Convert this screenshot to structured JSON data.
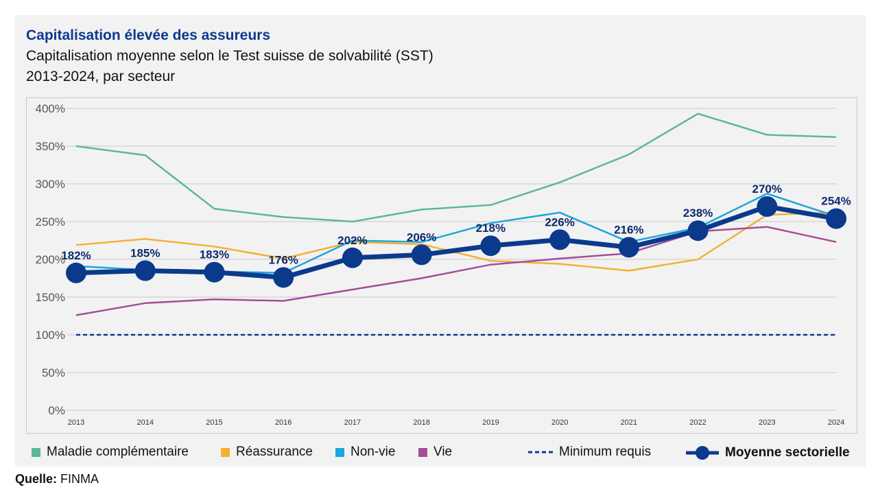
{
  "title": "Capitalisation élevée des assureurs",
  "subtitle": "Capitalisation moyenne selon le Test suisse de solvabilité (SST)",
  "subtitle2": "2013-2024, par secteur",
  "source_label": "Quelle:",
  "source_value": "FINMA",
  "chart_data": {
    "type": "line",
    "x": [
      "2013",
      "2014",
      "2015",
      "2016",
      "2017",
      "2018",
      "2019",
      "2020",
      "2021",
      "2022",
      "2023",
      "2024"
    ],
    "ylim": [
      0,
      400
    ],
    "yticks": [
      "0%",
      "50%",
      "100%",
      "150%",
      "200%",
      "250%",
      "300%",
      "350%",
      "400%"
    ],
    "grid": true,
    "legend_position": "bottom",
    "series": [
      {
        "name": "Maladie complémentaire",
        "color": "#5cb895",
        "values": [
          350,
          338,
          267,
          256,
          250,
          266,
          272,
          302,
          339,
          393,
          365,
          362
        ]
      },
      {
        "name": "Réassurance",
        "color": "#f2b134",
        "values": [
          219,
          227,
          217,
          201,
          223,
          220,
          198,
          194,
          185,
          200,
          259,
          262
        ]
      },
      {
        "name": "Non-vie",
        "color": "#1ba6dd",
        "values": [
          191,
          186,
          184,
          182,
          225,
          223,
          248,
          262,
          223,
          242,
          287,
          257
        ]
      },
      {
        "name": "Vie",
        "color": "#a24e9a",
        "values": [
          126,
          142,
          147,
          145,
          160,
          175,
          193,
          201,
          208,
          237,
          243,
          223
        ]
      },
      {
        "name": "Minimum requis",
        "color": "#0b3a8c",
        "dashed": true,
        "values": [
          100,
          100,
          100,
          100,
          100,
          100,
          100,
          100,
          100,
          100,
          100,
          100
        ]
      },
      {
        "name": "Moyenne sectorielle",
        "color": "#0b3a8c",
        "bold": true,
        "values": [
          182,
          185,
          183,
          176,
          202,
          206,
          218,
          226,
          216,
          238,
          270,
          254
        ],
        "labels": [
          "182%",
          "185%",
          "183%",
          "176%",
          "202%",
          "206%",
          "218%",
          "226%",
          "216%",
          "238%",
          "270%",
          "254%"
        ]
      }
    ]
  }
}
